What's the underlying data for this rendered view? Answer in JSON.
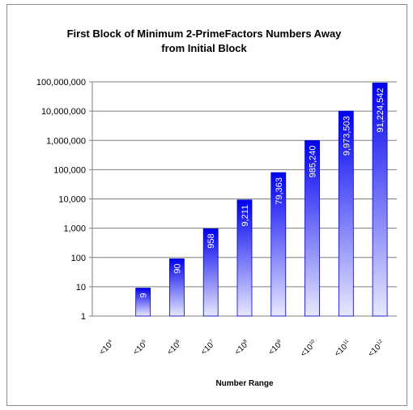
{
  "chart_data": {
    "type": "bar",
    "title": [
      "First Block of Minimum 2-PrimeFactors Numbers Away",
      "from Initial Block"
    ],
    "xlabel": "Number Range",
    "ylabel": "",
    "y_scale": "log",
    "ylim": [
      1,
      100000000
    ],
    "grid": true,
    "legend": "none",
    "yticks": [
      "1",
      "10",
      "100",
      "1,000",
      "10,000",
      "100,000",
      "1,000,000",
      "10,000,000",
      "100,000,000"
    ],
    "categories": [
      {
        "base": "<10",
        "exp": "4"
      },
      {
        "base": "<10",
        "exp": "5"
      },
      {
        "base": "<10",
        "exp": "6"
      },
      {
        "base": "<10",
        "exp": "7"
      },
      {
        "base": "<10",
        "exp": "8"
      },
      {
        "base": "<10",
        "exp": "9"
      },
      {
        "base": "<10",
        "exp": "10"
      },
      {
        "base": "<10",
        "exp": "11"
      },
      {
        "base": "<10",
        "exp": "12"
      }
    ],
    "values": [
      null,
      9,
      90,
      958,
      9211,
      79363,
      985240,
      9973503,
      91224542
    ],
    "value_labels": [
      "",
      "9",
      "90",
      "958",
      "9,211",
      "79,363",
      "985,240",
      "9,973,503",
      "91,224,542"
    ],
    "colors": {
      "bar_top": "#0000f0",
      "bar_bottom": "#e8e8ff",
      "bar_edge": "#0000cc",
      "grid": "#7f7f7f",
      "frame": "#8c8c8c"
    }
  }
}
